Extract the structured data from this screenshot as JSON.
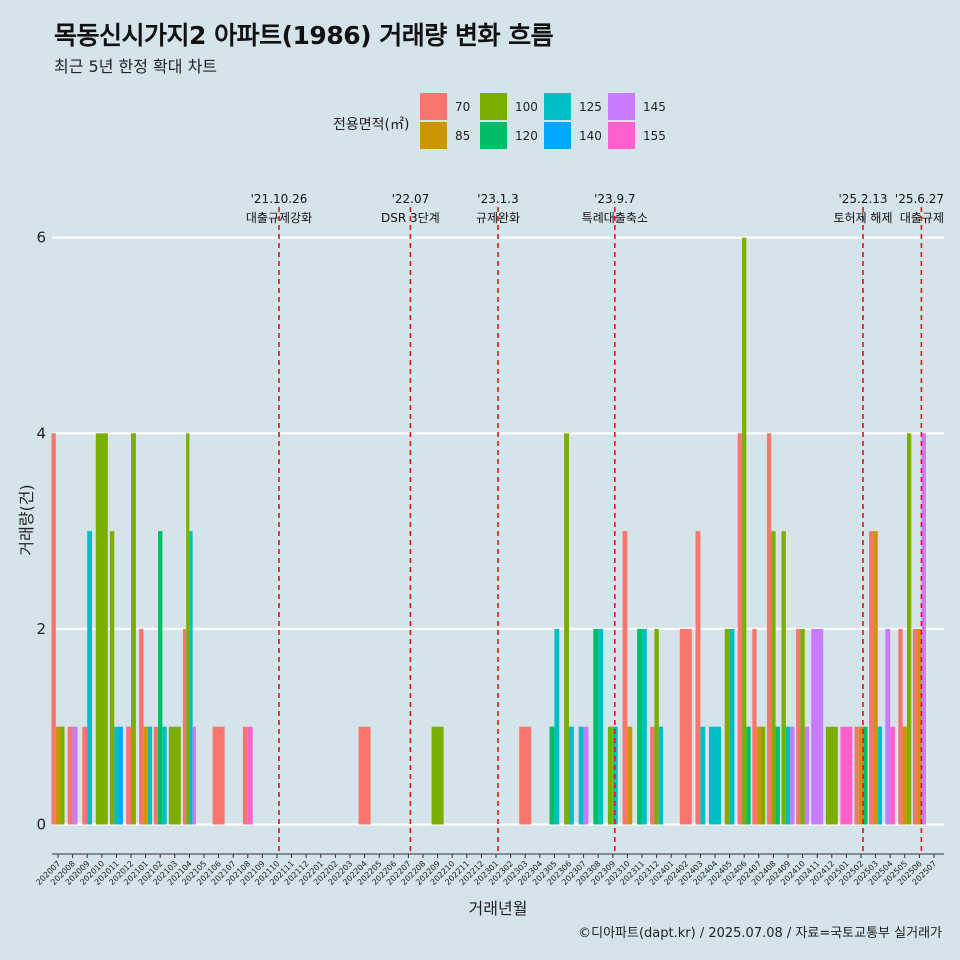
{
  "chart_data": {
    "type": "bar",
    "title": "목동신시가지2 아파트(1986) 거래량 변화 흐름",
    "subtitle": "최근 5년 한정 확대 차트",
    "xlabel": "거래년월",
    "ylabel": "거래량(건)",
    "ylim": [
      -0.3,
      6.15
    ],
    "yticks": [
      "0",
      "2",
      "4",
      "6"
    ],
    "legend_title": "전용면적(㎡)",
    "legend_position": "top",
    "legend": [
      {
        "label": "70",
        "color": "#F8766D"
      },
      {
        "label": "85",
        "color": "#CD9600"
      },
      {
        "label": "100",
        "color": "#7CAE00"
      },
      {
        "label": "120",
        "color": "#00BE67"
      },
      {
        "label": "125",
        "color": "#00BFC4"
      },
      {
        "label": "140",
        "color": "#00A9FF"
      },
      {
        "label": "145",
        "color": "#C77CFF"
      },
      {
        "label": "155",
        "color": "#FF61CC"
      }
    ],
    "categories": [
      "202007",
      "202008",
      "202009",
      "202010",
      "202011",
      "202012",
      "202101",
      "202102",
      "202103",
      "202104",
      "202105",
      "202106",
      "202107",
      "202108",
      "202109",
      "202110",
      "202111",
      "202112",
      "202201",
      "202202",
      "202203",
      "202204",
      "202205",
      "202206",
      "202207",
      "202208",
      "202209",
      "202210",
      "202211",
      "202212",
      "202301",
      "202302",
      "202303",
      "202304",
      "202305",
      "202306",
      "202307",
      "202308",
      "202309",
      "202310",
      "202311",
      "202312",
      "202401",
      "202402",
      "202403",
      "202404",
      "202405",
      "202406",
      "202407",
      "202408",
      "202409",
      "202410",
      "202411",
      "202412",
      "202501",
      "202502",
      "202503",
      "202504",
      "202505",
      "202506",
      "202507"
    ],
    "bars": [
      {
        "month": "202007",
        "values": [
          [
            "70",
            4
          ],
          [
            "85",
            1
          ],
          [
            "100",
            1
          ]
        ]
      },
      {
        "month": "202008",
        "values": [
          [
            "70",
            1
          ],
          [
            "145",
            1
          ]
        ]
      },
      {
        "month": "202009",
        "values": [
          [
            "70",
            1
          ],
          [
            "125",
            3
          ]
        ]
      },
      {
        "month": "202010",
        "values": [
          [
            "100",
            4
          ]
        ]
      },
      {
        "month": "202011",
        "values": [
          [
            "100",
            3
          ],
          [
            "125",
            1
          ],
          [
            "140",
            1
          ]
        ]
      },
      {
        "month": "202012",
        "values": [
          [
            "70",
            1
          ],
          [
            "100",
            4
          ]
        ]
      },
      {
        "month": "202101",
        "values": [
          [
            "70",
            2
          ],
          [
            "85",
            1
          ],
          [
            "125",
            1
          ]
        ]
      },
      {
        "month": "202102",
        "values": [
          [
            "70",
            1
          ],
          [
            "120",
            3
          ],
          [
            "125",
            1
          ]
        ]
      },
      {
        "month": "202103",
        "values": [
          [
            "100",
            1
          ]
        ]
      },
      {
        "month": "202104",
        "values": [
          [
            "70",
            2
          ],
          [
            "100",
            4
          ],
          [
            "125",
            3
          ],
          [
            "145",
            1
          ]
        ]
      },
      {
        "month": "202106",
        "values": [
          [
            "70",
            1
          ]
        ]
      },
      {
        "month": "202108",
        "values": [
          [
            "70",
            1
          ],
          [
            "155",
            1
          ]
        ]
      },
      {
        "month": "202204",
        "values": [
          [
            "70",
            1
          ]
        ]
      },
      {
        "month": "202209",
        "values": [
          [
            "100",
            1
          ]
        ]
      },
      {
        "month": "202303",
        "values": [
          [
            "70",
            1
          ]
        ]
      },
      {
        "month": "202305",
        "values": [
          [
            "120",
            1
          ],
          [
            "125",
            2
          ]
        ]
      },
      {
        "month": "202306",
        "values": [
          [
            "100",
            4
          ],
          [
            "125",
            1
          ]
        ]
      },
      {
        "month": "202307",
        "values": [
          [
            "125",
            1
          ],
          [
            "145",
            1
          ]
        ]
      },
      {
        "month": "202308",
        "values": [
          [
            "120",
            2
          ],
          [
            "125",
            2
          ]
        ]
      },
      {
        "month": "202309",
        "values": [
          [
            "100",
            1
          ],
          [
            "125",
            1
          ]
        ]
      },
      {
        "month": "202310",
        "values": [
          [
            "70",
            3
          ],
          [
            "85",
            1
          ]
        ]
      },
      {
        "month": "202311",
        "values": [
          [
            "120",
            2
          ],
          [
            "125",
            2
          ]
        ]
      },
      {
        "month": "202312",
        "values": [
          [
            "70",
            1
          ],
          [
            "100",
            2
          ],
          [
            "125",
            1
          ]
        ]
      },
      {
        "month": "202402",
        "values": [
          [
            "70",
            2
          ]
        ]
      },
      {
        "month": "202403",
        "values": [
          [
            "70",
            3
          ],
          [
            "125",
            1
          ]
        ]
      },
      {
        "month": "202404",
        "values": [
          [
            "125",
            1
          ]
        ]
      },
      {
        "month": "202405",
        "values": [
          [
            "100",
            2
          ],
          [
            "125",
            2
          ]
        ]
      },
      {
        "month": "202406",
        "values": [
          [
            "70",
            4
          ],
          [
            "100",
            6
          ],
          [
            "120",
            1
          ]
        ]
      },
      {
        "month": "202407",
        "values": [
          [
            "70",
            2
          ],
          [
            "85",
            1
          ],
          [
            "100",
            1
          ]
        ]
      },
      {
        "month": "202408",
        "values": [
          [
            "70",
            4
          ],
          [
            "100",
            3
          ],
          [
            "120",
            1
          ]
        ]
      },
      {
        "month": "202409",
        "values": [
          [
            "100",
            3
          ],
          [
            "125",
            1
          ],
          [
            "145",
            1
          ]
        ]
      },
      {
        "month": "202410",
        "values": [
          [
            "70",
            2
          ],
          [
            "100",
            2
          ],
          [
            "145",
            1
          ]
        ]
      },
      {
        "month": "202411",
        "values": [
          [
            "145",
            2
          ]
        ]
      },
      {
        "month": "202412",
        "values": [
          [
            "100",
            1
          ]
        ]
      },
      {
        "month": "202501",
        "values": [
          [
            "155",
            1
          ]
        ]
      },
      {
        "month": "202502",
        "values": [
          [
            "70",
            1
          ],
          [
            "85",
            1
          ],
          [
            "120",
            1
          ]
        ]
      },
      {
        "month": "202503",
        "values": [
          [
            "70",
            3
          ],
          [
            "85",
            3
          ],
          [
            "125",
            1
          ]
        ]
      },
      {
        "month": "202504",
        "values": [
          [
            "145",
            2
          ],
          [
            "155",
            1
          ]
        ]
      },
      {
        "month": "202505",
        "values": [
          [
            "70",
            2
          ],
          [
            "85",
            1
          ],
          [
            "100",
            4
          ]
        ]
      },
      {
        "month": "202506",
        "values": [
          [
            "70",
            2
          ],
          [
            "85",
            2
          ],
          [
            "145",
            4
          ]
        ]
      }
    ],
    "annotations": [
      {
        "at": "202110",
        "date": "'21.10.26",
        "label": "대출규제강화"
      },
      {
        "at": "202207",
        "date": "'22.07",
        "label": "DSR 3단계"
      },
      {
        "at": "202301",
        "date": "'23.1.3",
        "label": "규제완화"
      },
      {
        "at": "202309",
        "date": "'23.9.7",
        "label": "특례대출축소"
      },
      {
        "at": "202502",
        "date": "'25.2.13",
        "label": "토허제 해제"
      },
      {
        "at": "202506",
        "date": "'25.6.27",
        "label": "대출규제"
      }
    ]
  },
  "caption": "©디아파트(dapt.kr) / 2025.07.08 / 자료=국토교통부 실거래가"
}
